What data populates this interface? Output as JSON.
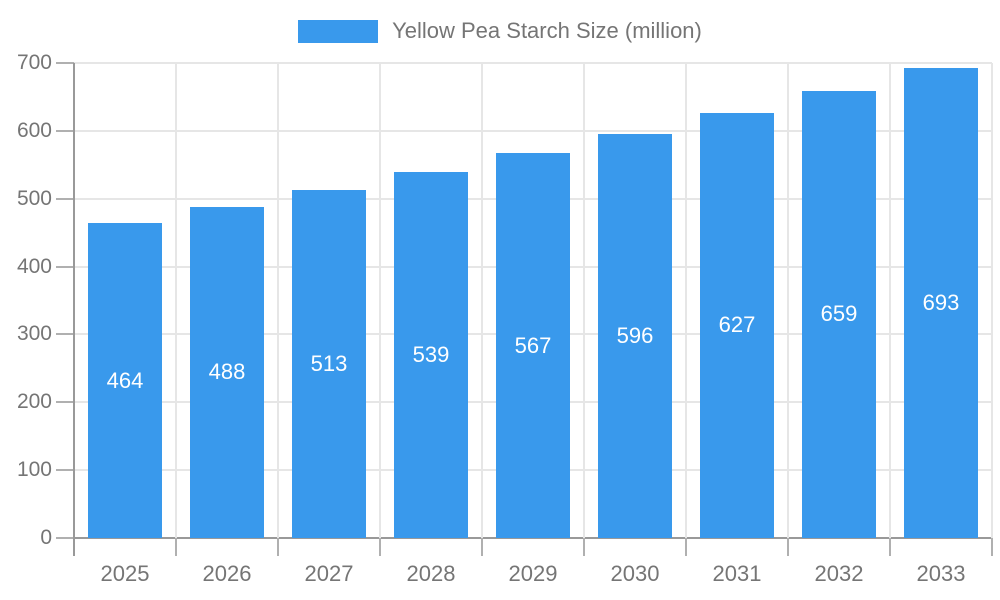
{
  "legend": {
    "label": "Yellow Pea Starch Size (million)"
  },
  "chart_data": {
    "type": "bar",
    "title": "",
    "legend_label": "Yellow Pea Starch Size (million)",
    "categories": [
      "2025",
      "2026",
      "2027",
      "2028",
      "2029",
      "2030",
      "2031",
      "2032",
      "2033"
    ],
    "values": [
      464,
      488,
      513,
      539,
      567,
      596,
      627,
      659,
      693
    ],
    "xlabel": "",
    "ylabel": "",
    "ylim": [
      0,
      700
    ],
    "yticks": [
      0,
      100,
      200,
      300,
      400,
      500,
      600,
      700
    ],
    "grid": true,
    "legend_position": "top-center",
    "bar_labels": "inside-center-white"
  },
  "colors": {
    "bar": "#3999EC",
    "bar_label": "#FFFFFF",
    "axis_text": "#757575",
    "legend_text": "#757575",
    "axis_line": "#999999",
    "tick": "#b0b0b0",
    "gridline": "#e6e6e6",
    "background": "#FFFFFF"
  }
}
